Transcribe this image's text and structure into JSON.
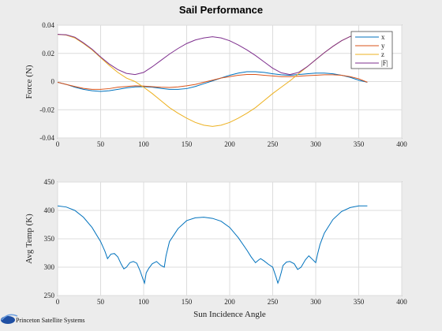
{
  "chart_data": [
    {
      "type": "line",
      "title": "Sail Performance",
      "xlabel": "",
      "ylabel": "Force (N)",
      "xlim": [
        0,
        400
      ],
      "ylim": [
        -0.04,
        0.04
      ],
      "xticks": [
        "0",
        "50",
        "100",
        "150",
        "200",
        "250",
        "300",
        "350",
        "400"
      ],
      "yticks": [
        "-0.04",
        "-0.02",
        "0",
        "0.02",
        "0.04"
      ],
      "grid": true,
      "legend": "top-right",
      "x": [
        0,
        10,
        20,
        30,
        40,
        50,
        60,
        70,
        80,
        90,
        100,
        110,
        120,
        130,
        140,
        150,
        160,
        170,
        180,
        190,
        200,
        210,
        220,
        230,
        240,
        250,
        260,
        270,
        280,
        290,
        300,
        310,
        320,
        330,
        340,
        350,
        360
      ],
      "series": [
        {
          "name": "x",
          "color": "#0072bd",
          "values": [
            -0.0005,
            -0.002,
            -0.004,
            -0.0055,
            -0.0065,
            -0.007,
            -0.0065,
            -0.0055,
            -0.0045,
            -0.0038,
            -0.0036,
            -0.004,
            -0.0048,
            -0.0055,
            -0.0055,
            -0.005,
            -0.0035,
            -0.0015,
            0.0005,
            0.0025,
            0.0045,
            0.006,
            0.007,
            0.007,
            0.0065,
            0.0055,
            0.0048,
            0.0045,
            0.005,
            0.0055,
            0.006,
            0.006,
            0.0055,
            0.0045,
            0.003,
            0.001,
            -0.0005
          ]
        },
        {
          "name": "y",
          "color": "#d95319",
          "values": [
            -0.0005,
            -0.002,
            -0.0035,
            -0.0048,
            -0.0055,
            -0.0055,
            -0.005,
            -0.004,
            -0.0035,
            -0.003,
            -0.0032,
            -0.0036,
            -0.004,
            -0.0042,
            -0.0038,
            -0.003,
            -0.002,
            -0.0005,
            0.001,
            0.0025,
            0.0035,
            0.0045,
            0.005,
            0.005,
            0.0045,
            0.004,
            0.0035,
            0.0035,
            0.0038,
            0.0042,
            0.0045,
            0.0048,
            0.0048,
            0.0045,
            0.0035,
            0.002,
            -0.0005
          ]
        },
        {
          "name": "z",
          "color": "#edb120",
          "values": [
            0.0335,
            0.033,
            0.031,
            0.027,
            0.0225,
            0.017,
            0.0115,
            0.0065,
            0.0025,
            0.0,
            -0.004,
            -0.0085,
            -0.0135,
            -0.0185,
            -0.0225,
            -0.026,
            -0.029,
            -0.031,
            -0.0318,
            -0.031,
            -0.029,
            -0.026,
            -0.0225,
            -0.0185,
            -0.0135,
            -0.0085,
            -0.004,
            0.0005,
            0.0055,
            0.0105,
            0.0155,
            0.0205,
            0.025,
            0.029,
            0.032,
            0.0333,
            0.0335
          ]
        },
        {
          "name": "|F|",
          "color": "#7e2f8e",
          "values": [
            0.0335,
            0.0332,
            0.0315,
            0.0275,
            0.023,
            0.0175,
            0.0125,
            0.0085,
            0.0058,
            0.005,
            0.0065,
            0.0105,
            0.015,
            0.0195,
            0.0235,
            0.027,
            0.0295,
            0.031,
            0.0318,
            0.031,
            0.029,
            0.026,
            0.0225,
            0.0185,
            0.014,
            0.0095,
            0.0062,
            0.005,
            0.0065,
            0.0105,
            0.0155,
            0.0205,
            0.025,
            0.029,
            0.032,
            0.0333,
            0.0335
          ]
        }
      ]
    },
    {
      "type": "line",
      "title": "",
      "xlabel": "Sun Incidence Angle",
      "ylabel": "Avg Temp (K)",
      "xlim": [
        0,
        400
      ],
      "ylim": [
        250,
        450
      ],
      "xticks": [
        "0",
        "50",
        "100",
        "150",
        "200",
        "250",
        "300",
        "350",
        "400"
      ],
      "yticks": [
        "250",
        "300",
        "350",
        "400",
        "450"
      ],
      "grid": true,
      "series": [
        {
          "color": "#0072bd",
          "x": [
            0,
            10,
            20,
            30,
            40,
            50,
            55,
            58,
            62,
            66,
            70,
            74,
            77,
            80,
            84,
            88,
            92,
            96,
            99,
            101,
            103,
            106,
            110,
            115,
            120,
            124,
            126,
            130,
            140,
            150,
            160,
            170,
            180,
            190,
            200,
            210,
            220,
            225,
            230,
            234,
            236,
            240,
            245,
            250,
            254,
            256,
            258,
            260,
            262,
            266,
            270,
            275,
            279,
            283,
            288,
            292,
            296,
            300,
            302,
            305,
            310,
            320,
            330,
            340,
            350,
            360
          ],
          "values": [
            408,
            406,
            400,
            388,
            370,
            345,
            328,
            315,
            323,
            324,
            318,
            305,
            297,
            300,
            308,
            310,
            307,
            293,
            280,
            272,
            290,
            298,
            306,
            310,
            303,
            300,
            320,
            345,
            368,
            382,
            387,
            388,
            386,
            381,
            370,
            352,
            330,
            318,
            308,
            313,
            315,
            311,
            305,
            300,
            282,
            272,
            280,
            291,
            303,
            309,
            310,
            306,
            296,
            300,
            313,
            320,
            314,
            308,
            322,
            340,
            360,
            384,
            398,
            405,
            408,
            408
          ]
        }
      ]
    }
  ],
  "logo": {
    "text": "Princeton Satellite Systems"
  }
}
